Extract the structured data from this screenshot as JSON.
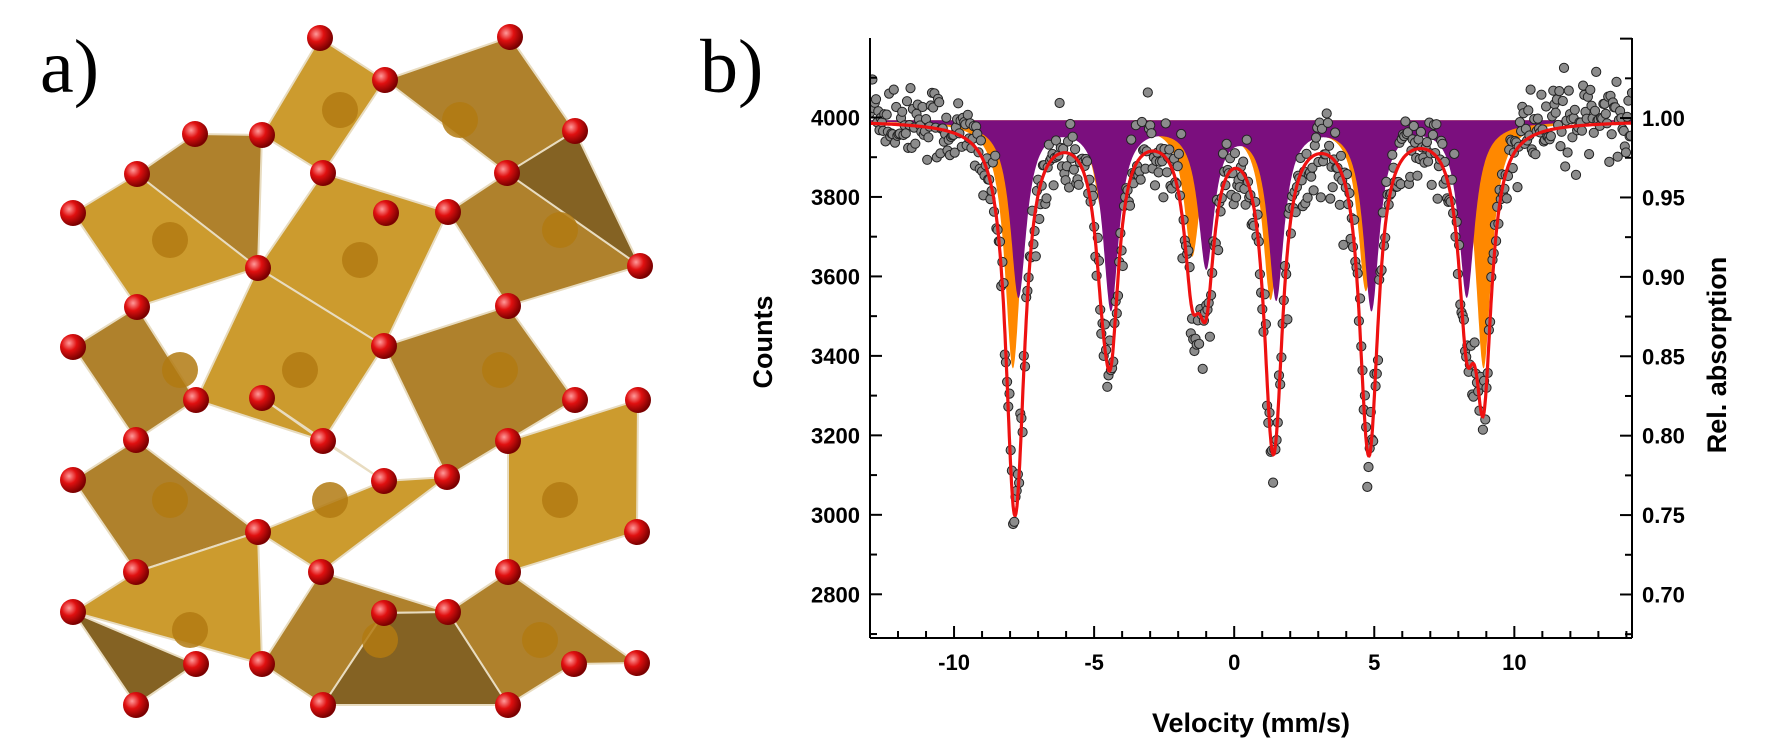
{
  "panel_a": {
    "label": "a)",
    "colors": {
      "octahedron_light": "#c8921c",
      "octahedron_mid": "#a8761a",
      "octahedron_dark": "#7a5510",
      "oxygen": "#e01010",
      "edge": "#e8dcc0"
    }
  },
  "panel_b": {
    "label": "b)"
  },
  "chart_data": {
    "type": "scatter",
    "title": "",
    "xlabel": "Velocity (mm/s)",
    "ylabel": "Counts",
    "y2label": "Rel. absorption",
    "xlim": [
      -13,
      14.2
    ],
    "ylim": [
      2690,
      4200
    ],
    "y2lim": [
      0.6726,
      1.0504
    ],
    "x_ticks": [
      -10,
      -5,
      0,
      5,
      10
    ],
    "x_tick_labels": [
      "-10",
      "-5",
      "0",
      "5",
      "10"
    ],
    "y_ticks": [
      2800,
      3000,
      3200,
      3400,
      3600,
      3800,
      4000
    ],
    "y_tick_labels": [
      "2800",
      "3000",
      "3200",
      "3400",
      "3600",
      "3800",
      "4000"
    ],
    "y2_ticks": [
      0.7,
      0.75,
      0.8,
      0.85,
      0.9,
      0.95,
      1.0
    ],
    "y2_tick_labels": [
      "0.70",
      "0.75",
      "0.80",
      "0.85",
      "0.90",
      "0.95",
      "1.00"
    ],
    "baseline": 3993,
    "colors": {
      "data": "#8c8c8c",
      "fit": "#ee1111",
      "sextet1": "#7b0f7e",
      "sextet2": "#ff8800"
    },
    "series": [
      {
        "name": "Sextet 1 (purple)",
        "type": "lorentzian_fill",
        "peaks": [
          {
            "center": -7.7,
            "depth": 440,
            "width": 0.35
          },
          {
            "center": -4.4,
            "depth": 470,
            "width": 0.35
          },
          {
            "center": -1.0,
            "depth": 360,
            "width": 0.35
          },
          {
            "center": 1.5,
            "depth": 440,
            "width": 0.35
          },
          {
            "center": 4.9,
            "depth": 470,
            "width": 0.35
          },
          {
            "center": 8.3,
            "depth": 440,
            "width": 0.35
          }
        ]
      },
      {
        "name": "Sextet 2 (orange)",
        "type": "lorentzian_fill",
        "peaks": [
          {
            "center": -7.9,
            "depth": 620,
            "width": 0.35
          },
          {
            "center": -4.7,
            "depth": 220,
            "width": 0.35
          },
          {
            "center": -1.5,
            "depth": 330,
            "width": 0.35
          },
          {
            "center": 1.3,
            "depth": 440,
            "width": 0.35
          },
          {
            "center": 4.7,
            "depth": 420,
            "width": 0.35
          },
          {
            "center": 8.9,
            "depth": 620,
            "width": 0.35
          }
        ]
      },
      {
        "name": "Total fit",
        "type": "line",
        "sum_of": [
          "Sextet 1 (purple)",
          "Sextet 2 (orange)"
        ]
      },
      {
        "name": "Measured counts",
        "type": "scatter",
        "count": 640,
        "noise_sd": 50,
        "model": "Total fit",
        "x_range": [
          -13,
          14.2
        ]
      }
    ]
  }
}
